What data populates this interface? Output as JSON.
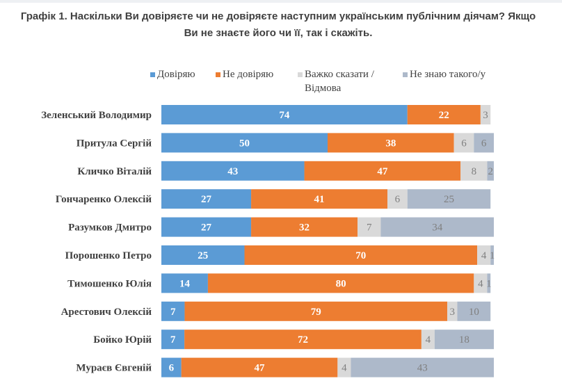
{
  "chart_data": {
    "type": "bar",
    "orientation": "horizontal-stacked-100",
    "title": "Графік 1. Наскільки Ви довіряєте чи не довіряєте наступним українським публічним діячам? Якщо Ви не знаєте його чи її, так і скажіть.",
    "categories": [
      "Зеленський Володимир",
      "Притула Сергій",
      "Кличко Віталій",
      "Гончаренко Олексій",
      "Разумков Дмитро",
      "Порошенко Петро",
      "Тимошенко Юлія",
      "Арестович Олексій",
      "Бойко Юрій",
      "Мураєв Євгеній"
    ],
    "series": [
      {
        "name": "Довіряю",
        "color": "#5b9bd5",
        "values": [
          74,
          50,
          43,
          27,
          27,
          25,
          14,
          7,
          7,
          6
        ]
      },
      {
        "name": "Не довіряю",
        "color": "#ed7d31",
        "values": [
          22,
          38,
          47,
          41,
          32,
          70,
          80,
          79,
          72,
          47
        ]
      },
      {
        "name": "Важко сказати / Відмова",
        "color": "#d9d9d9",
        "values": [
          3,
          6,
          8,
          6,
          7,
          4,
          4,
          3,
          4,
          4
        ]
      },
      {
        "name": "Не знаю такого/у",
        "color": "#adb9ca",
        "values": [
          null,
          6,
          2,
          25,
          34,
          1,
          1,
          10,
          18,
          43
        ]
      }
    ],
    "legend_position": "top",
    "grid": false
  }
}
